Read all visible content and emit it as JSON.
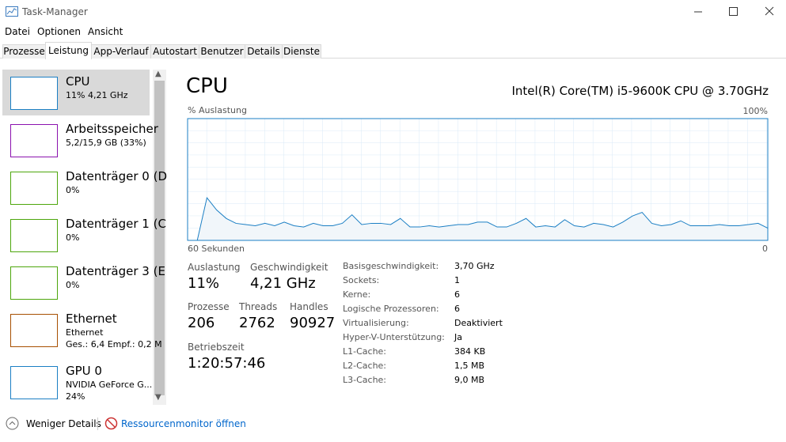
{
  "window": {
    "title": "Task-Manager"
  },
  "menu": [
    "Datei",
    "Optionen",
    "Ansicht"
  ],
  "tabs": [
    "Prozesse",
    "Leistung",
    "App-Verlauf",
    "Autostart",
    "Benutzer",
    "Details",
    "Dienste"
  ],
  "sidebar": [
    {
      "name": "CPU",
      "lines": [
        "11% 4,21 GHz"
      ]
    },
    {
      "name": "Arbeitsspeicher",
      "lines": [
        "5,2/15,9 GB (33%)"
      ]
    },
    {
      "name": "Datenträger 0 (D",
      "lines": [
        "0%"
      ]
    },
    {
      "name": "Datenträger 1 (C",
      "lines": [
        "0%"
      ]
    },
    {
      "name": "Datenträger 3 (E",
      "lines": [
        "0%"
      ]
    },
    {
      "name": "Ethernet",
      "lines": [
        "Ethernet",
        "Ges.: 6,4 Empf.: 0,2 M"
      ]
    },
    {
      "name": "GPU 0",
      "lines": [
        "NVIDIA GeForce G...",
        "24%"
      ]
    }
  ],
  "cpu": {
    "title": "CPU",
    "model": "Intel(R) Core(TM) i5-9600K CPU @ 3.70GHz",
    "chart_data": {
      "type": "area",
      "y_label": "% Auslastung",
      "ylim": [
        0,
        100
      ],
      "yticks": [
        {
          "value": 100,
          "label": "100%"
        }
      ],
      "xlim": [
        60,
        0
      ],
      "xticks": [
        {
          "value": 60,
          "label": "60 Sekunden"
        },
        0
      ],
      "color": "#1b7fc4",
      "x": [
        60,
        59,
        58,
        57,
        56,
        55,
        54,
        53,
        52,
        51,
        50,
        49,
        48,
        47,
        46,
        45,
        44,
        43,
        42,
        41,
        40,
        39,
        38,
        37,
        36,
        35,
        34,
        33,
        32,
        31,
        30,
        29,
        28,
        27,
        26,
        25,
        24,
        23,
        22,
        21,
        20,
        19,
        18,
        17,
        16,
        15,
        14,
        13,
        12,
        11,
        10,
        9,
        8,
        7,
        6,
        5,
        4,
        3,
        2,
        1,
        0
      ],
      "values": [
        0,
        0,
        35,
        25,
        18,
        14,
        13,
        12,
        14,
        12,
        15,
        12,
        11,
        14,
        12,
        12,
        14,
        21,
        13,
        14,
        14,
        13,
        18,
        11,
        11,
        12,
        11,
        12,
        13,
        13,
        15,
        15,
        11,
        11,
        14,
        18,
        11,
        12,
        11,
        17,
        12,
        11,
        14,
        13,
        11,
        15,
        20,
        23,
        14,
        12,
        13,
        16,
        12,
        12,
        12,
        13,
        12,
        12,
        13,
        14,
        10
      ]
    },
    "stats": [
      {
        "label": "Auslastung",
        "value": "11%"
      },
      {
        "label": "Geschwindigkeit",
        "value": "4,21 GHz"
      },
      {
        "label": "Prozesse",
        "value": "206"
      },
      {
        "label": "Threads",
        "value": "2762"
      },
      {
        "label": "Handles",
        "value": "90927"
      },
      {
        "label": "Betriebszeit",
        "value": "1:20:57:46"
      }
    ],
    "details": [
      [
        "Basisgeschwindigkeit:",
        "3,70 GHz"
      ],
      [
        "Sockets:",
        "1"
      ],
      [
        "Kerne:",
        "6"
      ],
      [
        "Logische Prozessoren:",
        "6"
      ],
      [
        "Virtualisierung:",
        "Deaktiviert"
      ],
      [
        "Hyper-V-Unterstützung:",
        "Ja"
      ],
      [
        "L1-Cache:",
        "384 KB"
      ],
      [
        "L2-Cache:",
        "1,5 MB"
      ],
      [
        "L3-Cache:",
        "9,0 MB"
      ]
    ]
  },
  "footer": {
    "less": "Weniger Details",
    "monitor": "Ressourcenmonitor öffnen"
  }
}
